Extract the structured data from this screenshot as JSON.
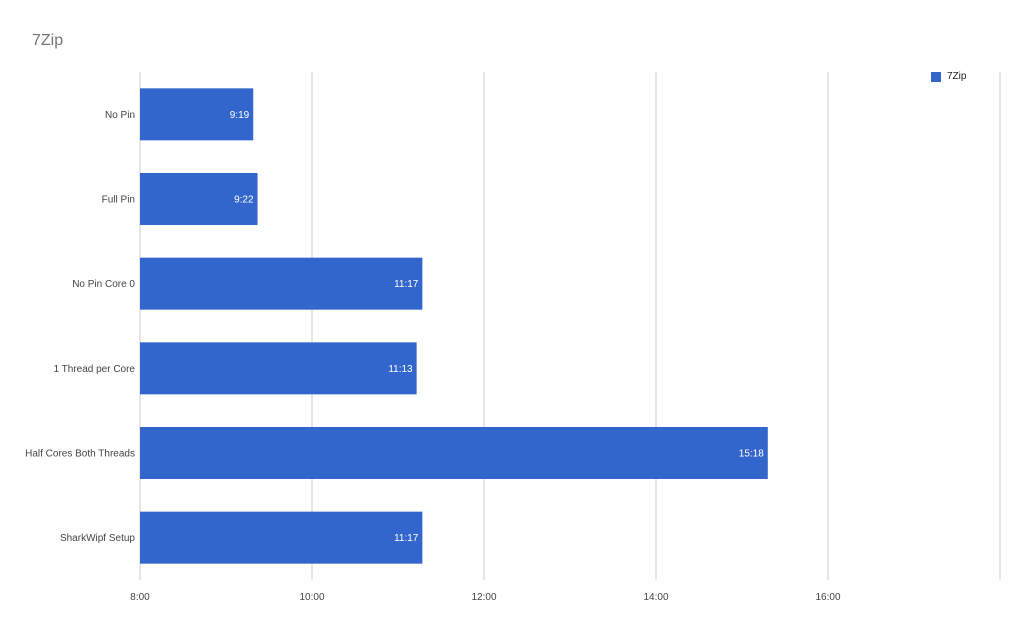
{
  "chart_data": {
    "type": "bar",
    "orientation": "horizontal",
    "title": "7Zip",
    "categories": [
      "No Pin",
      "Full Pin",
      "No Pin Core 0",
      "1 Thread per Core",
      "Half Cores Both Threads",
      "SharkWipf Setup"
    ],
    "series": [
      {
        "name": "7Zip",
        "color": "#3366cc",
        "values": [
          "9:19",
          "9:22",
          "11:17",
          "11:13",
          "15:18",
          "11:17"
        ],
        "data_labels": [
          "9:19",
          "9:22",
          "11:17",
          "11:13",
          "15:18",
          "11:17"
        ]
      }
    ],
    "x_ticks": [
      "8:00",
      "10:00",
      "12:00",
      "14:00",
      "16:00",
      ""
    ],
    "xlim": [
      "8:00",
      "18:00"
    ],
    "xlabel": "",
    "ylabel": "",
    "grid": "vertical",
    "legend_position": "top-right"
  }
}
